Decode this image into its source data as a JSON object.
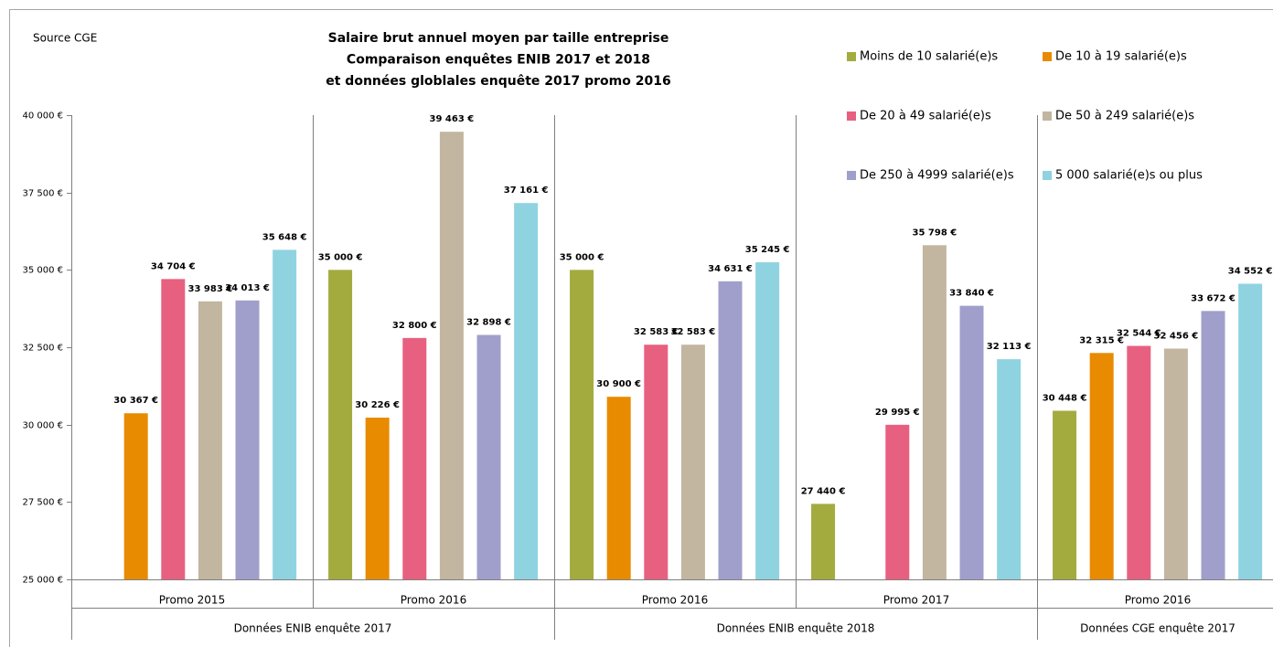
{
  "chart_data": {
    "type": "bar",
    "title_lines": [
      "Salaire brut annuel moyen par taille entreprise",
      "Comparaison enquêtes ENIB 2017 et 2018",
      "et données globlales enquête 2017 promo 2016"
    ],
    "source": "Source CGE",
    "category_groups": [
      {
        "label": "Données ENIB enquête 2017",
        "categories": [
          "Promo 2015",
          "Promo 2016"
        ]
      },
      {
        "label": "Données ENIB enquête 2018",
        "categories": [
          "Promo 2016",
          "Promo 2017"
        ]
      },
      {
        "label": "Données CGE enquête 2017",
        "categories": [
          "Promo 2016"
        ]
      }
    ],
    "ylim": [
      25000,
      40000
    ],
    "yticks": [
      {
        "value": 25000,
        "label": "25 000 €"
      },
      {
        "value": 27500,
        "label": "27 500 €"
      },
      {
        "value": 30000,
        "label": "30 000 €"
      },
      {
        "value": 32500,
        "label": "32 500 €"
      },
      {
        "value": 35000,
        "label": "35 000 €"
      },
      {
        "value": 37500,
        "label": "37 500 €"
      },
      {
        "value": 40000,
        "label": "40 000 €"
      }
    ],
    "legend_position": "top-right",
    "series": [
      {
        "name": "Moins de 10 salarié(e)s",
        "color": "#a3ab3f",
        "values": [
          null,
          35000,
          35000,
          27440,
          30448
        ],
        "value_labels": [
          null,
          "35 000 €",
          "35 000 €",
          "27 440 €",
          "30 448 €"
        ]
      },
      {
        "name": "De 10 à 19 salarié(e)s",
        "color": "#e88b00",
        "values": [
          30367,
          30226,
          30900,
          null,
          32315
        ],
        "value_labels": [
          "30 367 €",
          "30 226 €",
          "30 900 €",
          null,
          "32 315 €"
        ]
      },
      {
        "name": "De 20 à 49 salarié(e)s",
        "color": "#e8607f",
        "values": [
          34704,
          32800,
          32583,
          29995,
          32544
        ],
        "value_labels": [
          "34 704 €",
          "32 800 €",
          "32 583 €",
          "29 995 €",
          "32 544 €"
        ]
      },
      {
        "name": "De 50 à 249 salarié(e)s",
        "color": "#c2b6a0",
        "values": [
          33983,
          39463,
          32583,
          35798,
          32456
        ],
        "value_labels": [
          "33 983 €",
          "39 463 €",
          "32 583 €",
          "35 798 €",
          "32 456 €"
        ]
      },
      {
        "name": "De 250 à 4999 salarié(e)s",
        "color": "#a09fcb",
        "values": [
          34013,
          32898,
          34631,
          33840,
          33672
        ],
        "value_labels": [
          "34 013 €",
          "32 898 €",
          "34 631 €",
          "33 840 €",
          "33 672 €"
        ]
      },
      {
        "name": "5 000 salarié(e)s ou plus",
        "color": "#8fd3e0",
        "values": [
          35648,
          37161,
          35245,
          32113,
          34552
        ],
        "value_labels": [
          "35 648 €",
          "37 161 €",
          "35 245 €",
          "32 113 €",
          "34 552 €"
        ]
      }
    ]
  }
}
